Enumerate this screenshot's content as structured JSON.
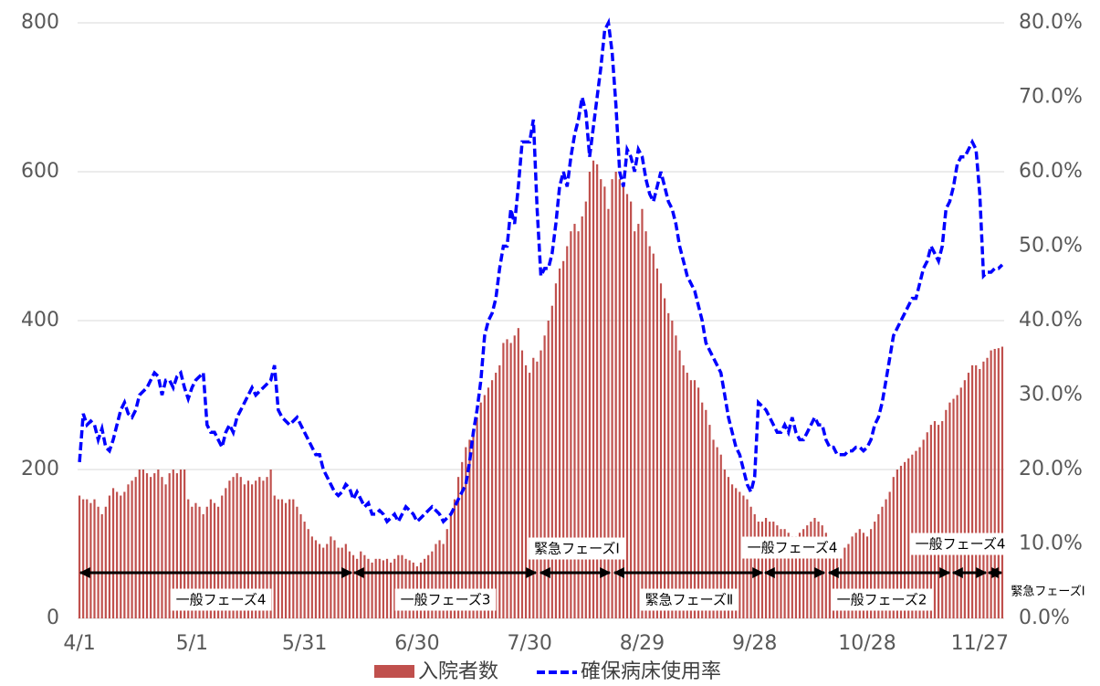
{
  "chart_data": {
    "type": "bar-line",
    "categories": [
      "4/1",
      null,
      null,
      null,
      null,
      null,
      null,
      null,
      null,
      null,
      null,
      null,
      null,
      null,
      null,
      null,
      null,
      null,
      null,
      null,
      null,
      null,
      null,
      null,
      null,
      null,
      null,
      null,
      null,
      null,
      "5/1",
      null,
      null,
      null,
      null,
      null,
      null,
      null,
      null,
      null,
      null,
      null,
      null,
      null,
      null,
      null,
      null,
      null,
      null,
      null,
      null,
      null,
      null,
      null,
      null,
      null,
      null,
      null,
      null,
      null,
      "5/31",
      null,
      null,
      null,
      null,
      null,
      null,
      null,
      null,
      null,
      null,
      null,
      null,
      null,
      null,
      null,
      null,
      null,
      null,
      null,
      null,
      null,
      null,
      null,
      null,
      null,
      null,
      null,
      null,
      null,
      "6/30",
      null,
      null,
      null,
      null,
      null,
      null,
      null,
      null,
      null,
      null,
      null,
      null,
      null,
      null,
      null,
      null,
      null,
      null,
      null,
      null,
      null,
      null,
      null,
      null,
      null,
      null,
      null,
      null,
      null,
      "7/30",
      null,
      null,
      null,
      null,
      null,
      null,
      null,
      null,
      null,
      null,
      null,
      null,
      null,
      null,
      null,
      null,
      null,
      null,
      null,
      null,
      null,
      null,
      null,
      null,
      null,
      null,
      null,
      null,
      null,
      "8/29",
      null,
      null,
      null,
      null,
      null,
      null,
      null,
      null,
      null,
      null,
      null,
      null,
      null,
      null,
      null,
      null,
      null,
      null,
      null,
      null,
      null,
      null,
      null,
      null,
      null,
      null,
      null,
      null,
      null,
      "9/28",
      null,
      null,
      null,
      null,
      null,
      null,
      null,
      null,
      null,
      null,
      null,
      null,
      null,
      null,
      null,
      null,
      null,
      null,
      null,
      null,
      null,
      null,
      null,
      null,
      null,
      null,
      null,
      null,
      null,
      "10/28",
      null,
      null,
      null,
      null,
      null,
      null,
      null,
      null,
      null,
      null,
      null,
      null,
      null,
      null,
      null,
      null,
      null,
      null,
      null,
      null,
      null,
      null,
      null,
      null,
      null,
      null,
      null,
      null,
      null,
      "11/27",
      null,
      null,
      null,
      null,
      null,
      null
    ],
    "series": [
      {
        "name": "入院者数",
        "color": "#c0504d",
        "values": [
          165,
          160,
          160,
          155,
          160,
          150,
          140,
          150,
          165,
          175,
          170,
          165,
          170,
          180,
          185,
          190,
          200,
          200,
          195,
          190,
          195,
          200,
          190,
          180,
          195,
          200,
          195,
          200,
          200,
          160,
          150,
          155,
          150,
          140,
          150,
          160,
          155,
          150,
          165,
          175,
          185,
          190,
          195,
          190,
          180,
          185,
          180,
          185,
          190,
          185,
          190,
          200,
          165,
          160,
          160,
          155,
          160,
          160,
          150,
          140,
          130,
          120,
          110,
          105,
          100,
          95,
          100,
          110,
          105,
          95,
          95,
          100,
          90,
          85,
          80,
          90,
          85,
          80,
          75,
          80,
          80,
          78,
          80,
          75,
          80,
          85,
          85,
          80,
          78,
          75,
          70,
          75,
          80,
          85,
          90,
          100,
          105,
          100,
          120,
          140,
          160,
          190,
          210,
          230,
          240,
          250,
          270,
          290,
          300,
          310,
          320,
          330,
          340,
          370,
          375,
          370,
          380,
          390,
          360,
          340,
          330,
          350,
          345,
          360,
          380,
          400,
          420,
          450,
          470,
          480,
          500,
          520,
          530,
          520,
          540,
          560,
          600,
          615,
          610,
          590,
          580,
          550,
          590,
          600,
          590,
          580,
          570,
          560,
          520,
          530,
          550,
          520,
          500,
          490,
          470,
          450,
          430,
          410,
          400,
          380,
          360,
          340,
          330,
          320,
          320,
          310,
          290,
          280,
          260,
          240,
          230,
          220,
          200,
          190,
          180,
          175,
          170,
          165,
          160,
          150,
          140,
          130,
          130,
          135,
          130,
          130,
          125,
          120,
          120,
          115,
          110,
          110,
          115,
          120,
          125,
          130,
          135,
          130,
          125,
          115,
          105,
          100,
          95,
          90,
          95,
          100,
          110,
          115,
          120,
          115,
          110,
          120,
          130,
          140,
          150,
          160,
          170,
          190,
          200,
          205,
          210,
          215,
          220,
          225,
          230,
          240,
          250,
          260,
          265,
          260,
          265,
          280,
          290,
          295,
          300,
          310,
          320,
          330,
          340,
          340,
          335,
          345,
          350,
          360,
          362,
          363,
          365
        ]
      },
      {
        "name": "確保病床使用率",
        "color": "#0000ff",
        "axis": "y2",
        "values": [
          21,
          27.5,
          26,
          26.5,
          26,
          24,
          25.5,
          23,
          22.5,
          24,
          26,
          28,
          29,
          27.5,
          27,
          28,
          30,
          30.5,
          31,
          32,
          33,
          32.5,
          30,
          32,
          32,
          31,
          32.5,
          33,
          31,
          29.5,
          31,
          32,
          32.5,
          33,
          26,
          25,
          25,
          24,
          23,
          25,
          26,
          25,
          27,
          28,
          29,
          30,
          31,
          30,
          30.5,
          31,
          31.5,
          32,
          34,
          28,
          27,
          26.5,
          26,
          26.5,
          27,
          26,
          25,
          24,
          23,
          22,
          22,
          20,
          19,
          18,
          17,
          16.5,
          17,
          18,
          17.5,
          16,
          17,
          16,
          15,
          15.5,
          14,
          14,
          14.5,
          14,
          13,
          13.5,
          14,
          13,
          14,
          15,
          14.5,
          14,
          13,
          13.5,
          14,
          14.5,
          15,
          14.5,
          14,
          13,
          13.5,
          14,
          15,
          16,
          17,
          18,
          21,
          25,
          28,
          32,
          38,
          40,
          41,
          43,
          47,
          50,
          50,
          55,
          53,
          58,
          64,
          64,
          64,
          67,
          55,
          46,
          47,
          47,
          49,
          53,
          58,
          60,
          58,
          62,
          65,
          67,
          70,
          68,
          62,
          66,
          70,
          74,
          79,
          80,
          76,
          69,
          60,
          58,
          63,
          62,
          60,
          63,
          62,
          59,
          57,
          56,
          58,
          60,
          58,
          56,
          55,
          53,
          50,
          48,
          46,
          45,
          44,
          42,
          40,
          37,
          36,
          35,
          34,
          33,
          30,
          27,
          25,
          23,
          22,
          20,
          18,
          17,
          19,
          29,
          28.5,
          28,
          27,
          26,
          25,
          25,
          26,
          25,
          27,
          25,
          24,
          24,
          25,
          26,
          27,
          26,
          26,
          24,
          23,
          23,
          22,
          22,
          22,
          22.5,
          22.5,
          23,
          23,
          22.5,
          23,
          24,
          26,
          27,
          29,
          32,
          35,
          38,
          39,
          40,
          41,
          42,
          43,
          43,
          45,
          47,
          48,
          50,
          49,
          48,
          50,
          55,
          56,
          58,
          61,
          62,
          62,
          63,
          64,
          63,
          57,
          46,
          46.5,
          46.5,
          47,
          47,
          47.5
        ]
      }
    ],
    "ylim": [
      0,
      800
    ],
    "yticks": [
      0,
      200,
      400,
      600,
      800
    ],
    "y2lim": [
      0,
      80
    ],
    "y2ticks": [
      {
        "value": 0,
        "label": "0.0%"
      },
      {
        "value": 10,
        "label": "10.0%"
      },
      {
        "value": 20,
        "label": "20.0%"
      },
      {
        "value": 30,
        "label": "30.0%"
      },
      {
        "value": 40,
        "label": "40.0%"
      },
      {
        "value": 50,
        "label": "50.0%"
      },
      {
        "value": 60,
        "label": "60.0%"
      },
      {
        "value": 70,
        "label": "70.0%"
      },
      {
        "value": 80,
        "label": "80.0%"
      }
    ],
    "grid": true,
    "annotations": [
      "一般フェーズ4",
      "一般フェーズ3",
      "緊急フェーズⅠ",
      "緊急フェーズⅡ",
      "一般フェーズ4",
      "一般フェーズ2",
      "一般フェーズ4",
      "緊急フェーズⅠ"
    ]
  }
}
